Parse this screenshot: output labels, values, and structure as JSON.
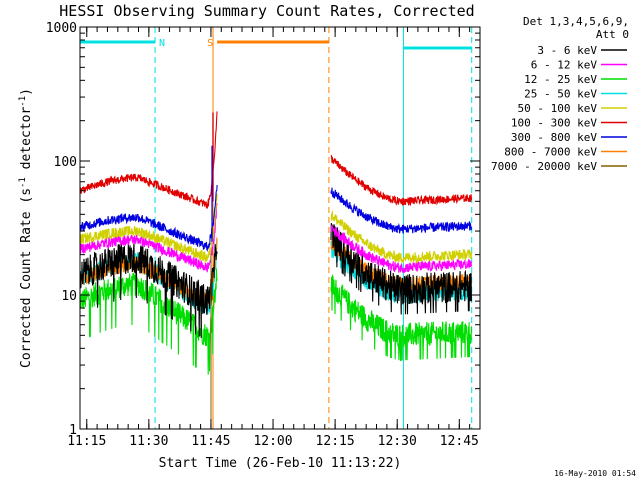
{
  "chart_data": {
    "type": "line",
    "title": "HESSI Observing Summary Count Rates, Corrected",
    "xlabel": "Start Time (26-Feb-10 11:13:22)",
    "ylabel_main": "Corrected Count Rate (s",
    "ylabel_sup1": "-1",
    "ylabel_mid": " detector",
    "ylabel_sup2": "-1",
    "ylabel_end": ")",
    "yscale": "log",
    "xlim": [
      "11:13:22",
      "12:50:00"
    ],
    "ylim": [
      1,
      1000
    ],
    "xticks": [
      "11:15",
      "11:30",
      "11:45",
      "12:00",
      "12:15",
      "12:30",
      "12:45"
    ],
    "yticks": [
      "1",
      "10",
      "100",
      "1000"
    ],
    "legend_header": [
      "Det 1,3,4,5,6,9,",
      "Att 0"
    ],
    "legend_position": "right",
    "footer": "16-May-2010 01:54",
    "annotations": [
      {
        "label": "N",
        "color": "#00e0e0",
        "bar": [
          "11:13:22",
          "11:31:30"
        ],
        "lines": [
          "11:13:22",
          "11:31:30",
          "12:31:30",
          "12:48:00"
        ]
      },
      {
        "label": "S",
        "color": "#ff8000",
        "bar": [
          "11:46:30",
          "12:13:30"
        ],
        "lines": [
          "11:45:30",
          "12:13:30"
        ]
      }
    ],
    "gap": [
      "11:46:30",
      "12:14:00"
    ],
    "series": [
      {
        "name": "3 - 6 keV",
        "color": "#000000"
      },
      {
        "name": "6 - 12 keV",
        "color": "#ff00ff"
      },
      {
        "name": "12 - 25 keV",
        "color": "#00dd00"
      },
      {
        "name": "25 - 50 keV",
        "color": "#00e0e0"
      },
      {
        "name": "50 - 100 keV",
        "color": "#d0d000"
      },
      {
        "name": "100 - 300 keV",
        "color": "#e00000"
      },
      {
        "name": "300 - 800 keV",
        "color": "#0000e0"
      },
      {
        "name": "800 - 7000 keV",
        "color": "#ff8000"
      },
      {
        "name": "7000 - 20000 keV",
        "color": "#806000"
      }
    ],
    "curves": {
      "red": {
        "peak": 75,
        "pre": 60,
        "dip": 47,
        "post_start": 105,
        "post_end": 50
      },
      "blue": {
        "peak": 38,
        "pre": 32,
        "dip": 23,
        "post_start": 60,
        "post_end": 31
      },
      "yellow": {
        "peak": 30,
        "pre": 26,
        "dip": 19,
        "post_start": 40,
        "post_end": 19
      },
      "magenta": {
        "peak": 26,
        "pre": 22,
        "dip": 16,
        "post_start": 32,
        "post_end": 16
      },
      "black": {
        "peak": 19,
        "pre": 14,
        "dip": 9,
        "post_start": 28,
        "post_end": 11
      },
      "orange": {
        "peak": 17,
        "pre": 13,
        "dip": 9,
        "post_start": 25,
        "post_end": 12
      },
      "cyan": {
        "peak": 18,
        "pre": 13,
        "dip": 8,
        "post_start": 22,
        "post_end": 10
      },
      "green": {
        "peak": 12,
        "pre": 9,
        "dip": 5,
        "post_start": 12,
        "post_end": 5
      }
    }
  }
}
